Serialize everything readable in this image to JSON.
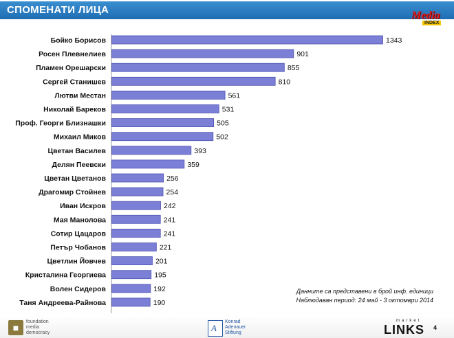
{
  "header": {
    "title": "СПОМЕНАТИ ЛИЦА"
  },
  "logos": {
    "media_index": {
      "line1": "Media",
      "line2": "INDEX"
    },
    "fmd": {
      "text": [
        "foundation",
        "media",
        "democracy"
      ]
    },
    "kas": {
      "mark": "A",
      "text": [
        "Konrad",
        "Adenauer",
        "Stiftung"
      ]
    },
    "market_links": {
      "line1": "market",
      "line2": "LINKS"
    }
  },
  "note": {
    "line1": "Данните са представени в брой инф. единици",
    "line2": "Наблюдаван период: 24 май - 3 октомври 2014"
  },
  "page_number": "4",
  "colors": {
    "header": "#2a7fc6",
    "bar": "#7b7fd6",
    "bar_edge": "#4d52b0"
  },
  "chart_data": {
    "type": "bar",
    "orientation": "horizontal",
    "categories": [
      "Бойко Борисов",
      "Росен Плевнелиев",
      "Пламен Орешарски",
      "Сергей Станишев",
      "Лютви Местан",
      "Николай Бареков",
      "Проф. Георги Близнашки",
      "Михаил Миков",
      "Цветан Василев",
      "Делян Пеевски",
      "Цветан Цветанов",
      "Драгомир Стойнев",
      "Иван Искров",
      "Мая Манолова",
      "Сотир Цацаров",
      "Петър Чобанов",
      "Цветлин Йовчев",
      "Кристалина Георгиева",
      "Волен Сидеров",
      "Таня Андреева-Райнова"
    ],
    "values": [
      1343,
      901,
      855,
      810,
      561,
      531,
      505,
      502,
      393,
      359,
      256,
      254,
      242,
      241,
      241,
      221,
      201,
      195,
      192,
      190
    ],
    "xlim": [
      0,
      1343
    ],
    "data_labels": true,
    "grid": false,
    "legend": "none"
  }
}
